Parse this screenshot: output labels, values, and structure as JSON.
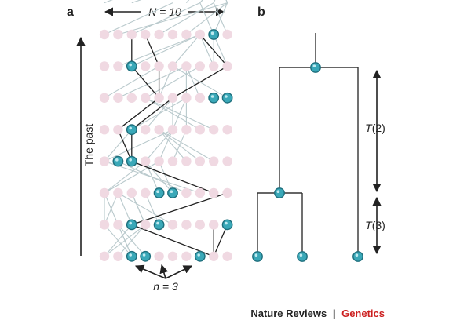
{
  "panel_a": {
    "letter": "a",
    "top_label": "N = 10",
    "side_label": "The past",
    "bottom_label": "n = 3"
  },
  "panel_b": {
    "letter": "b",
    "t2_label": "T(2)",
    "t3_label": "T(3)"
  },
  "footer": {
    "publisher": "Nature Reviews",
    "separator": "|",
    "journal": "Genetics"
  },
  "colors": {
    "inactive": "#f0d9e2",
    "active_fill": "#3aa8b8",
    "active_stroke": "#1e6f7d",
    "gray_line": "#b9c9cc",
    "dark_line": "#222222",
    "accent_red": "#cc1f1f"
  },
  "diagram": {
    "population_size": 10,
    "generations": 8,
    "sample_size": 3,
    "active": [
      [
        8
      ],
      [
        2
      ],
      [
        8,
        9
      ],
      [
        2
      ],
      [
        1,
        2
      ],
      [
        4,
        5
      ],
      [
        2,
        4,
        9
      ],
      [
        2,
        3,
        7
      ]
    ],
    "gray_links": [
      [
        1,
        0,
        0
      ],
      [
        3,
        0,
        2
      ],
      [
        7,
        0,
        5
      ],
      [
        8,
        0,
        6
      ],
      [
        0,
        2,
        1
      ],
      [
        1,
        3,
        2
      ],
      [
        2,
        4,
        3
      ],
      [
        3,
        6,
        4
      ],
      [
        4,
        5,
        5
      ],
      [
        5,
        7,
        6
      ],
      [
        6,
        1,
        7
      ],
      [
        7,
        8,
        7
      ],
      [
        8,
        9,
        8
      ],
      [
        9,
        3,
        9
      ],
      [
        0,
        2,
        1
      ],
      [
        1,
        0,
        1
      ],
      [
        2,
        5,
        3
      ],
      [
        3,
        4,
        5
      ],
      [
        4,
        6,
        6
      ],
      [
        5,
        3,
        7
      ],
      [
        6,
        8,
        8
      ],
      [
        7,
        1,
        9
      ],
      [
        8,
        2,
        9
      ],
      [
        9,
        6,
        8
      ],
      [
        0,
        1,
        3
      ],
      [
        1,
        2,
        1
      ],
      [
        2,
        0,
        4
      ],
      [
        3,
        5,
        6
      ],
      [
        4,
        7,
        3
      ],
      [
        5,
        4,
        5
      ],
      [
        6,
        9,
        7
      ],
      [
        7,
        8,
        9
      ],
      [
        8,
        6,
        8
      ],
      [
        9,
        3,
        4
      ],
      [
        0,
        0,
        3
      ],
      [
        1,
        3,
        2
      ],
      [
        2,
        6,
        1
      ],
      [
        3,
        8,
        4
      ],
      [
        4,
        2,
        6
      ],
      [
        5,
        9,
        5
      ],
      [
        6,
        5,
        7
      ],
      [
        7,
        4,
        8
      ],
      [
        8,
        7,
        9
      ],
      [
        9,
        1,
        0
      ],
      [
        0,
        0,
        2
      ],
      [
        1,
        4,
        3
      ],
      [
        2,
        7,
        0
      ],
      [
        3,
        3,
        5
      ],
      [
        4,
        5,
        6
      ],
      [
        5,
        0,
        4
      ],
      [
        6,
        9,
        8
      ],
      [
        7,
        2,
        7
      ],
      [
        8,
        8,
        9
      ],
      [
        9,
        6,
        1
      ],
      [
        0,
        3,
        1
      ],
      [
        1,
        1,
        0
      ],
      [
        2,
        5,
        4
      ],
      [
        3,
        0,
        5
      ],
      [
        4,
        8,
        3
      ],
      [
        5,
        6,
        6
      ],
      [
        6,
        2,
        7
      ],
      [
        7,
        9,
        8
      ],
      [
        8,
        7,
        9
      ],
      [
        9,
        4,
        2
      ],
      [
        0,
        2,
        0
      ],
      [
        1,
        5,
        1
      ],
      [
        2,
        0,
        3
      ],
      [
        3,
        7,
        4
      ],
      [
        4,
        3,
        5
      ],
      [
        5,
        1,
        6
      ],
      [
        6,
        8,
        7
      ],
      [
        7,
        6,
        9
      ],
      [
        8,
        9,
        8
      ],
      [
        9,
        4,
        2
      ]
    ],
    "dark_links": [
      [
        0,
        8,
        2
      ],
      [
        0,
        8,
        8
      ],
      [
        0,
        8,
        9
      ],
      [
        1,
        2,
        9
      ],
      [
        2,
        8,
        2
      ],
      [
        3,
        2,
        1
      ],
      [
        3,
        2,
        2
      ],
      [
        4,
        1,
        4
      ],
      [
        4,
        2,
        5
      ],
      [
        5,
        4,
        2
      ],
      [
        5,
        4,
        4
      ],
      [
        5,
        5,
        9
      ],
      [
        6,
        2,
        2
      ],
      [
        6,
        4,
        3
      ],
      [
        6,
        9,
        7
      ]
    ],
    "sample_arrows": 3,
    "tree": {
      "root": [
        402,
        86
      ],
      "internal": [
        356,
        246
      ],
      "leaves": [
        [
          328,
          327
        ],
        [
          385,
          327
        ],
        [
          456,
          327
        ]
      ]
    }
  }
}
